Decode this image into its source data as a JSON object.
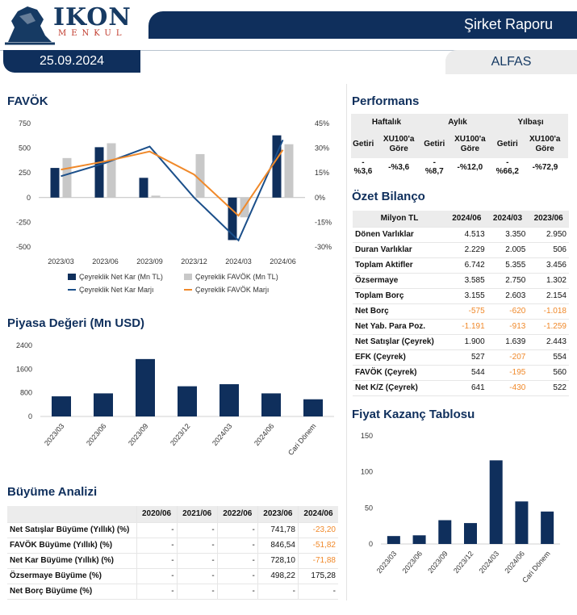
{
  "header": {
    "logo_word": "IKON",
    "logo_sub": "MENKUL",
    "title": "Şirket Raporu",
    "date": "25.09.2024",
    "ticker": "ALFAS"
  },
  "colors": {
    "navy": "#0f2f5c",
    "grey_bar": "#c8c8c8",
    "orange": "#f0892a",
    "line_navy": "#1b4f8a"
  },
  "favok": {
    "title": "FAVÖK",
    "chart_data": {
      "type": "bar+line",
      "categories": [
        "2023/03",
        "2023/06",
        "2023/09",
        "2023/12",
        "2024/03",
        "2024/06"
      ],
      "series": [
        {
          "name": "Çeyreklik Net Kar (Mn TL)",
          "kind": "bar",
          "values": [
            300,
            510,
            200,
            null,
            -430,
            630
          ]
        },
        {
          "name": "Çeyreklik FAVÖK (Mn TL)",
          "kind": "bar",
          "values": [
            400,
            550,
            20,
            440,
            -200,
            540
          ]
        },
        {
          "name": "Çeyreklik Net Kar Marjı",
          "kind": "line",
          "axis": "right",
          "values": [
            13,
            21,
            31,
            0,
            -26,
            35
          ]
        },
        {
          "name": "Çeyreklik FAVÖK Marjı",
          "kind": "line",
          "axis": "right",
          "values": [
            17,
            22,
            28,
            14,
            -11,
            29
          ]
        }
      ],
      "y_left": {
        "ticks": [
          "750",
          "500",
          "250",
          "0",
          "-250",
          "-500"
        ],
        "range": [
          -500,
          750
        ]
      },
      "y_right": {
        "ticks": [
          "45%",
          "30%",
          "15%",
          "0%",
          "-15%",
          "-30%"
        ],
        "range": [
          -30,
          45
        ]
      }
    }
  },
  "piyasa": {
    "title": "Piyasa Değeri (Mn USD)",
    "chart_data": {
      "type": "bar",
      "categories": [
        "2023/03",
        "2023/06",
        "2023/09",
        "2023/12",
        "2024/03",
        "2024/06",
        "Cari Dönem"
      ],
      "values": [
        680,
        780,
        1940,
        1020,
        1090,
        780,
        580
      ],
      "y_ticks": [
        "2400",
        "1600",
        "800",
        "0"
      ],
      "ylim": [
        0,
        2400
      ]
    }
  },
  "performans": {
    "title": "Performans",
    "periods": [
      "Haftalık",
      "Aylık",
      "Yılbaşı"
    ],
    "sub": [
      "Getiri",
      "XU100'a Göre",
      "Getiri",
      "XU100'a Göre",
      "Getiri",
      "XU100'a Göre"
    ],
    "values": [
      "-%3,6",
      "-%3,6",
      "-%8,7",
      "-%12,0",
      "-%66,2",
      "-%72,9"
    ]
  },
  "bilanco": {
    "title": "Özet Bilanço",
    "headers": [
      "Milyon TL",
      "2024/06",
      "2024/03",
      "2023/06"
    ],
    "rows": [
      {
        "label": "Dönen Varlıklar",
        "v": [
          "4.513",
          "3.350",
          "2.950"
        ]
      },
      {
        "label": "Duran Varlıklar",
        "v": [
          "2.229",
          "2.005",
          "506"
        ]
      },
      {
        "label": "Toplam Aktifler",
        "v": [
          "6.742",
          "5.355",
          "3.456"
        ]
      },
      {
        "label": "Özsermaye",
        "v": [
          "3.585",
          "2.750",
          "1.302"
        ]
      },
      {
        "label": "Toplam Borç",
        "v": [
          "3.155",
          "2.603",
          "2.154"
        ]
      },
      {
        "label": "Net Borç",
        "v": [
          "-575",
          "-620",
          "-1.018"
        ]
      },
      {
        "label": "Net Yab. Para Poz.",
        "v": [
          "-1.191",
          "-913",
          "-1.259"
        ]
      },
      {
        "label": "Net Satışlar (Çeyrek)",
        "v": [
          "1.900",
          "1.639",
          "2.443"
        ]
      },
      {
        "label": "EFK (Çeyrek)",
        "v": [
          "527",
          "-207",
          "554"
        ]
      },
      {
        "label": "FAVÖK (Çeyrek)",
        "v": [
          "544",
          "-195",
          "560"
        ]
      },
      {
        "label": "Net K/Z (Çeyrek)",
        "v": [
          "641",
          "-430",
          "522"
        ]
      }
    ]
  },
  "fk": {
    "title": "Fiyat Kazanç Tablosu",
    "chart_data": {
      "type": "bar",
      "categories": [
        "2023/03",
        "2023/06",
        "2023/09",
        "2023/12",
        "2024/03",
        "2024/06",
        "Cari Dönem"
      ],
      "values": [
        11,
        12,
        33,
        29,
        116,
        59,
        45
      ],
      "y_ticks": [
        "150",
        "100",
        "50",
        "0"
      ],
      "ylim": [
        0,
        150
      ]
    }
  },
  "buyume": {
    "title": "Büyüme Analizi",
    "headers": [
      "",
      "2020/06",
      "2021/06",
      "2022/06",
      "2023/06",
      "2024/06"
    ],
    "rows": [
      {
        "label": "Net Satışlar Büyüme (Yıllık) (%)",
        "v": [
          "-",
          "-",
          "-",
          "741,78",
          "-23,20"
        ]
      },
      {
        "label": "FAVÖK Büyüme (Yıllık) (%)",
        "v": [
          "-",
          "-",
          "-",
          "846,54",
          "-51,82"
        ]
      },
      {
        "label": "Net Kar Büyüme (Yıllık) (%)",
        "v": [
          "-",
          "-",
          "-",
          "728,10",
          "-71,88"
        ]
      },
      {
        "label": "Özsermaye Büyüme (%)",
        "v": [
          "-",
          "-",
          "-",
          "498,22",
          "175,28"
        ]
      },
      {
        "label": "Net Borç Büyüme (%)",
        "v": [
          "-",
          "-",
          "-",
          "-",
          "-"
        ]
      }
    ]
  }
}
